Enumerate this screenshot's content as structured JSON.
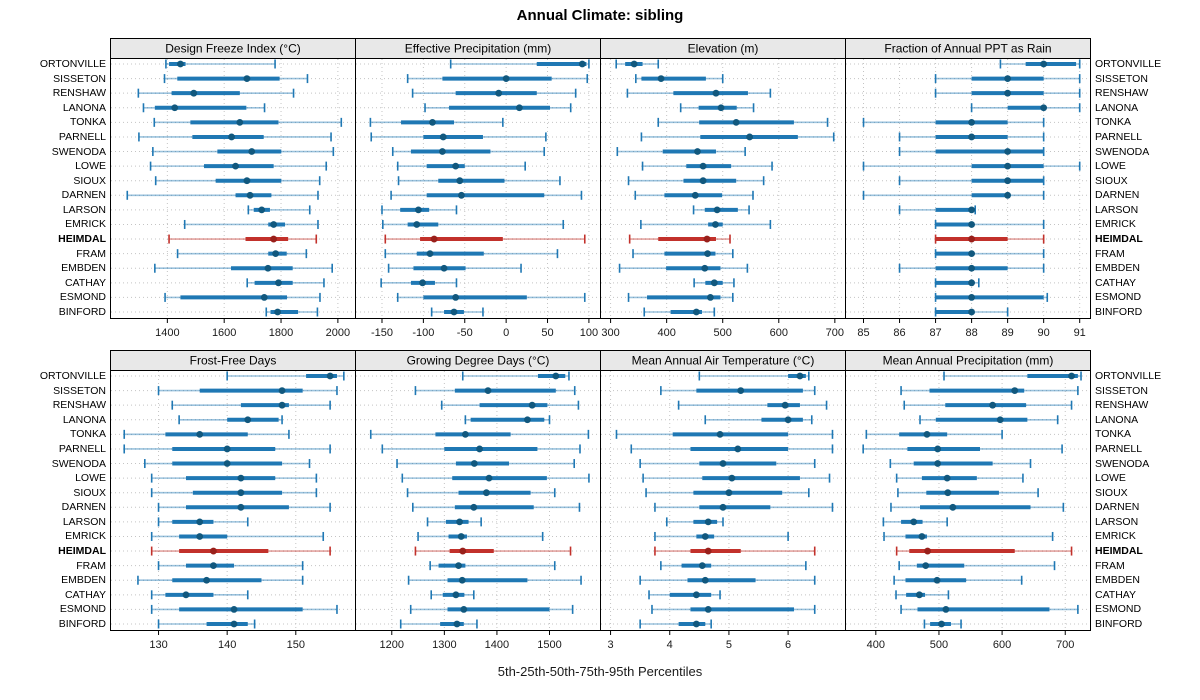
{
  "chart_data": {
    "type": "scatter",
    "variant": "percentile-interval-dotplot",
    "title": "Annual Climate: sibling",
    "caption": "5th-25th-50th-75th-95th Percentiles",
    "percentiles": [
      5,
      25,
      50,
      75,
      95
    ],
    "legend": "none",
    "grid": "dotted",
    "stations": [
      "ORTONVILLE",
      "SISSETON",
      "RENSHAW",
      "LANONA",
      "TONKA",
      "PARNELL",
      "SWENODA",
      "LOWE",
      "SIOUX",
      "DARNEN",
      "LARSON",
      "EMRICK",
      "HEIMDAL",
      "FRAM",
      "EMBDEN",
      "CATHAY",
      "ESMOND",
      "BINFORD"
    ],
    "highlighted_station": "HEIMDAL",
    "colors": {
      "series": "#1f78b4",
      "series_dot": "#11587e",
      "series_light": "rgba(31,120,180,0.45)",
      "highlight": "#c2312b",
      "highlight_dot": "#99201b",
      "highlight_light": "rgba(194,49,43,0.45)",
      "strip_bg": "#e8e8e8",
      "grid_line": "#c4c4c4",
      "border": "#000000"
    },
    "layout": {
      "rows": 2,
      "cols": 4
    },
    "panels": [
      {
        "title": "Design Freeze Index (°C)",
        "xlim": [
          1200,
          2062
        ],
        "ticks": [
          1400,
          1600,
          1800,
          2000
        ],
        "values": [
          [
            1395,
            1406,
            1446,
            1464,
            1779
          ],
          [
            1390,
            1435,
            1680,
            1795,
            1893
          ],
          [
            1298,
            1415,
            1493,
            1655,
            1844
          ],
          [
            1316,
            1356,
            1426,
            1678,
            1742
          ],
          [
            1354,
            1481,
            1655,
            1791,
            2012
          ],
          [
            1300,
            1488,
            1626,
            1739,
            1976
          ],
          [
            1349,
            1576,
            1697,
            1801,
            1984
          ],
          [
            1341,
            1529,
            1640,
            1774,
            1959
          ],
          [
            1359,
            1570,
            1680,
            1801,
            1936
          ],
          [
            1259,
            1640,
            1691,
            1766,
            1930
          ],
          [
            1685,
            1704,
            1732,
            1761,
            1901
          ],
          [
            1461,
            1755,
            1774,
            1814,
            1930
          ],
          [
            1406,
            1675,
            1774,
            1825,
            1924
          ],
          [
            1436,
            1755,
            1781,
            1820,
            1889
          ],
          [
            1356,
            1624,
            1754,
            1841,
            1980
          ],
          [
            1681,
            1707,
            1791,
            1841,
            1951
          ],
          [
            1392,
            1446,
            1741,
            1821,
            1937
          ],
          [
            1748,
            1763,
            1788,
            1860,
            1928
          ]
        ]
      },
      {
        "title": "Effective Precipitation (mm)",
        "xlim": [
          -182,
          114
        ],
        "ticks": [
          -150,
          -100,
          -50,
          0,
          50,
          100
        ],
        "values": [
          [
            -67,
            37,
            92,
            97,
            100
          ],
          [
            -119,
            -77,
            0,
            55,
            98
          ],
          [
            -113,
            -61,
            -9,
            37,
            84
          ],
          [
            -98,
            -69,
            16,
            53,
            78
          ],
          [
            -164,
            -127,
            -89,
            -63,
            -4
          ],
          [
            -163,
            -100,
            -76,
            -28,
            48
          ],
          [
            -137,
            -115,
            -77,
            -19,
            46
          ],
          [
            -131,
            -96,
            -61,
            -50,
            23
          ],
          [
            -130,
            -82,
            -56,
            -2,
            65
          ],
          [
            -139,
            -96,
            -54,
            46,
            91
          ],
          [
            -150,
            -128,
            -106,
            -93,
            -60
          ],
          [
            -149,
            -119,
            -108,
            -82,
            69
          ],
          [
            -146,
            -104,
            -87,
            -4,
            95
          ],
          [
            -146,
            -108,
            -92,
            -27,
            62
          ],
          [
            -142,
            -112,
            -75,
            -49,
            18
          ],
          [
            -151,
            -115,
            -101,
            -86,
            -60
          ],
          [
            -131,
            -100,
            -61,
            25,
            95
          ],
          [
            -90,
            -75,
            -63,
            -51,
            -28
          ]
        ]
      },
      {
        "title": "Elevation (m)",
        "xlim": [
          282,
          719
        ],
        "ticks": [
          300,
          400,
          500,
          600,
          700
        ],
        "values": [
          [
            310,
            326,
            342,
            357,
            385
          ],
          [
            345,
            355,
            390,
            470,
            500
          ],
          [
            330,
            412,
            488,
            545,
            585
          ],
          [
            425,
            457,
            497,
            525,
            555
          ],
          [
            385,
            458,
            524,
            627,
            687
          ],
          [
            355,
            460,
            548,
            634,
            698
          ],
          [
            312,
            393,
            455,
            488,
            540
          ],
          [
            357,
            435,
            465,
            515,
            588
          ],
          [
            332,
            430,
            465,
            524,
            573
          ],
          [
            344,
            396,
            451,
            499,
            554
          ],
          [
            448,
            468,
            490,
            527,
            547
          ],
          [
            354,
            474,
            487,
            500,
            585
          ],
          [
            334,
            385,
            472,
            488,
            513
          ],
          [
            340,
            396,
            473,
            487,
            518
          ],
          [
            316,
            399,
            468,
            496,
            544
          ],
          [
            449,
            469,
            485,
            500,
            520
          ],
          [
            332,
            365,
            478,
            496,
            518
          ],
          [
            360,
            407,
            453,
            463,
            485
          ]
        ]
      },
      {
        "title": "Fraction of Annual PPT as Rain",
        "xlim": [
          84.5,
          91.3
        ],
        "ticks": [
          85,
          86,
          87,
          88,
          89,
          90,
          91
        ],
        "values": [
          [
            88.8,
            89.5,
            90,
            90.9,
            91
          ],
          [
            87,
            88,
            89,
            90,
            91
          ],
          [
            87,
            88,
            89,
            90,
            91
          ],
          [
            88,
            89,
            90,
            90,
            91
          ],
          [
            85,
            87,
            88,
            89,
            90
          ],
          [
            86,
            87,
            88,
            89,
            90
          ],
          [
            86,
            87,
            89,
            90,
            90
          ],
          [
            85,
            88,
            89,
            90,
            91
          ],
          [
            86,
            88,
            89,
            90,
            90
          ],
          [
            85,
            88,
            89,
            89,
            90
          ],
          [
            86,
            87,
            88,
            88,
            88.1
          ],
          [
            87,
            87,
            88,
            88,
            90
          ],
          [
            87,
            87,
            88,
            89,
            90
          ],
          [
            87,
            87,
            88,
            88,
            90
          ],
          [
            86,
            87,
            88,
            89,
            90
          ],
          [
            87,
            87,
            88,
            88,
            88.2
          ],
          [
            87,
            87,
            88,
            90,
            90.1
          ],
          [
            87,
            87,
            88,
            88,
            89
          ]
        ]
      },
      {
        "title": "Frost-Free Days",
        "xlim": [
          123,
          158.7
        ],
        "ticks": [
          130,
          140,
          150
        ],
        "values": [
          [
            140,
            151.5,
            155,
            156,
            157
          ],
          [
            130,
            136,
            148,
            151,
            156
          ],
          [
            132,
            142,
            148,
            149,
            155
          ],
          [
            133,
            140,
            143,
            147.5,
            148
          ],
          [
            125,
            131,
            136,
            143,
            149
          ],
          [
            125,
            132,
            140,
            147,
            155
          ],
          [
            128,
            132,
            140,
            148,
            152
          ],
          [
            129,
            134,
            142,
            147,
            153
          ],
          [
            129,
            135,
            142,
            148,
            153
          ],
          [
            130,
            134,
            142,
            149,
            155
          ],
          [
            130,
            132,
            136,
            138,
            143
          ],
          [
            129,
            133,
            136,
            140,
            154
          ],
          [
            129,
            133,
            138,
            146,
            155
          ],
          [
            130,
            134,
            138,
            141,
            151
          ],
          [
            127,
            132,
            137,
            145,
            151
          ],
          [
            129,
            131,
            134,
            138,
            143
          ],
          [
            129,
            133,
            141,
            151,
            156
          ],
          [
            130,
            137,
            141,
            143,
            144
          ]
        ]
      },
      {
        "title": "Growing Degree Days (°C)",
        "xlim": [
          1131,
          1597
        ],
        "ticks": [
          1200,
          1300,
          1400,
          1500
        ],
        "values": [
          [
            1335,
            1478,
            1512,
            1530,
            1537
          ],
          [
            1245,
            1320,
            1383,
            1512,
            1548
          ],
          [
            1295,
            1367,
            1467,
            1496,
            1555
          ],
          [
            1340,
            1350,
            1458,
            1490,
            1500
          ],
          [
            1160,
            1283,
            1340,
            1426,
            1574
          ],
          [
            1182,
            1300,
            1367,
            1477,
            1558
          ],
          [
            1210,
            1322,
            1357,
            1423,
            1547
          ],
          [
            1220,
            1315,
            1385,
            1495,
            1575
          ],
          [
            1230,
            1327,
            1380,
            1464,
            1510
          ],
          [
            1240,
            1320,
            1356,
            1470,
            1557
          ],
          [
            1268,
            1303,
            1329,
            1346,
            1370
          ],
          [
            1250,
            1308,
            1332,
            1343,
            1487
          ],
          [
            1245,
            1310,
            1335,
            1394,
            1540
          ],
          [
            1273,
            1289,
            1327,
            1340,
            1510
          ],
          [
            1232,
            1306,
            1334,
            1458,
            1560
          ],
          [
            1275,
            1297,
            1322,
            1338,
            1356
          ],
          [
            1236,
            1306,
            1337,
            1500,
            1544
          ],
          [
            1217,
            1292,
            1324,
            1337,
            1362
          ]
        ]
      },
      {
        "title": "Mean Annual Air Temperature (°C)",
        "xlim": [
          2.83,
          6.97
        ],
        "ticks": [
          3,
          4,
          5,
          6
        ],
        "values": [
          [
            4.5,
            6.0,
            6.2,
            6.3,
            6.35
          ],
          [
            3.85,
            4.45,
            5.2,
            6.25,
            6.45
          ],
          [
            4.15,
            5.65,
            5.95,
            6.2,
            6.65
          ],
          [
            4.6,
            5.55,
            6.0,
            6.25,
            6.4
          ],
          [
            3.1,
            4.05,
            4.85,
            6.0,
            6.75
          ],
          [
            3.35,
            4.35,
            5.15,
            6.0,
            6.75
          ],
          [
            3.5,
            4.5,
            4.9,
            5.8,
            6.45
          ],
          [
            3.55,
            4.55,
            5.05,
            6.2,
            6.7
          ],
          [
            3.6,
            4.4,
            5.0,
            5.9,
            6.35
          ],
          [
            3.75,
            4.5,
            4.9,
            5.7,
            6.75
          ],
          [
            3.95,
            4.4,
            4.65,
            4.8,
            4.9
          ],
          [
            3.75,
            4.45,
            4.6,
            4.75,
            6.0
          ],
          [
            3.75,
            4.35,
            4.65,
            5.2,
            6.45
          ],
          [
            3.85,
            4.2,
            4.55,
            4.7,
            6.3
          ],
          [
            3.5,
            4.3,
            4.6,
            5.45,
            6.45
          ],
          [
            3.65,
            4.0,
            4.45,
            4.7,
            4.85
          ],
          [
            3.7,
            4.35,
            4.65,
            6.1,
            6.45
          ],
          [
            3.5,
            4.15,
            4.45,
            4.6,
            4.7
          ]
        ]
      },
      {
        "title": "Mean Annual Precipitation (mm)",
        "xlim": [
          352,
          740
        ],
        "ticks": [
          400,
          500,
          600,
          700
        ],
        "values": [
          [
            508,
            640,
            710,
            720,
            725
          ],
          [
            440,
            485,
            620,
            635,
            720
          ],
          [
            445,
            510,
            585,
            638,
            710
          ],
          [
            470,
            495,
            597,
            640,
            688
          ],
          [
            385,
            437,
            481,
            513,
            600
          ],
          [
            380,
            450,
            498,
            565,
            695
          ],
          [
            423,
            460,
            498,
            585,
            645
          ],
          [
            433,
            473,
            513,
            560,
            633
          ],
          [
            435,
            480,
            514,
            595,
            657
          ],
          [
            424,
            470,
            522,
            645,
            697
          ],
          [
            412,
            440,
            460,
            474,
            513
          ],
          [
            413,
            447,
            473,
            481,
            680
          ],
          [
            433,
            453,
            482,
            620,
            710
          ],
          [
            437,
            465,
            479,
            540,
            683
          ],
          [
            429,
            447,
            497,
            543,
            631
          ],
          [
            432,
            448,
            469,
            478,
            515
          ],
          [
            440,
            466,
            511,
            675,
            720
          ],
          [
            477,
            486,
            504,
            519,
            535
          ]
        ]
      }
    ]
  }
}
